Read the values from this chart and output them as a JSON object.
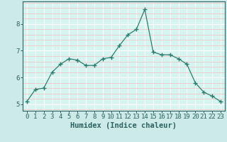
{
  "x": [
    0,
    1,
    2,
    3,
    4,
    5,
    6,
    7,
    8,
    9,
    10,
    11,
    12,
    13,
    14,
    15,
    16,
    17,
    18,
    19,
    20,
    21,
    22,
    23
  ],
  "y": [
    5.1,
    5.55,
    5.6,
    6.2,
    6.5,
    6.7,
    6.65,
    6.45,
    6.45,
    6.7,
    6.75,
    7.2,
    7.6,
    7.8,
    8.55,
    6.95,
    6.85,
    6.85,
    6.7,
    6.5,
    5.8,
    5.45,
    5.3,
    5.1
  ],
  "xlabel": "Humidex (Indice chaleur)",
  "ylim": [
    4.75,
    8.85
  ],
  "xlim": [
    -0.5,
    23.5
  ],
  "line_color": "#2d7d6e",
  "marker": "+",
  "bg_color": "#cceae8",
  "plot_bg_color": "#d6f5f0",
  "grid_major_color": "#ffffff",
  "grid_minor_color": "#f0c8c8",
  "yticks": [
    5,
    6,
    7,
    8
  ],
  "xticks": [
    0,
    1,
    2,
    3,
    4,
    5,
    6,
    7,
    8,
    9,
    10,
    11,
    12,
    13,
    14,
    15,
    16,
    17,
    18,
    19,
    20,
    21,
    22,
    23
  ],
  "tick_color": "#2d6060",
  "label_fontsize": 7.5,
  "tick_fontsize": 6.5,
  "xlabel_fontsize": 7.5
}
